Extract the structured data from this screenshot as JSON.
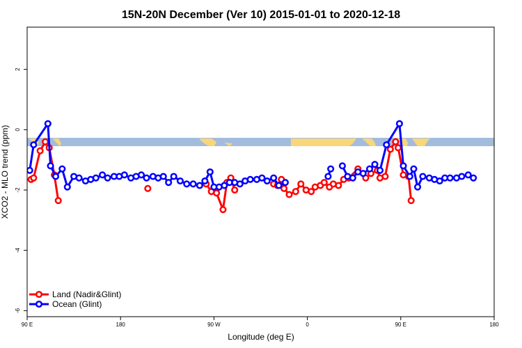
{
  "chart_data": {
    "type": "line",
    "title": "15N-20N December (Ver 10)   2015-01-01 to 2020-12-18",
    "xlabel": "Longitude (deg E)",
    "ylabel": "XCO2 - MLO trend (ppm)",
    "xlim": [
      90,
      450
    ],
    "ylim": [
      -6.2,
      3.4
    ],
    "x_ticks": [
      {
        "value": 90,
        "label": "90 E"
      },
      {
        "value": 162,
        "label": "180"
      },
      {
        "value": 234,
        "label": "90 W"
      },
      {
        "value": 306,
        "label": "0"
      },
      {
        "value": 378,
        "label": "90 E"
      },
      {
        "value": 450,
        "label": "180"
      }
    ],
    "y_ticks": [
      {
        "value": 2,
        "label": "2"
      },
      {
        "value": 0,
        "label": "0"
      },
      {
        "value": -2,
        "label": "-2"
      },
      {
        "value": -4,
        "label": "-4"
      },
      {
        "value": -6,
        "label": "-6"
      }
    ],
    "grid": false,
    "legend": "bottom-left",
    "background_band": {
      "y_range": [
        -0.78,
        -0.5
      ],
      "ocean_color": "#a3bcdd",
      "land_color": "#f9d67a"
    },
    "series": [
      {
        "name": "Land (Nadir&Glint)",
        "color": "#ff0000",
        "segments": [
          [
            [
              93,
              -1.65
            ],
            [
              95,
              -1.6
            ],
            [
              100,
              -0.7
            ],
            [
              104,
              -0.4
            ],
            [
              107,
              -0.6
            ],
            [
              111,
              -1.5
            ],
            [
              114,
              -2.35
            ]
          ],
          [
            [
              183,
              -1.95
            ]
          ],
          [
            [
              228,
              -1.8
            ],
            [
              232,
              -2.05
            ],
            [
              236,
              -2.1
            ],
            [
              241,
              -2.65
            ],
            [
              244,
              -1.75
            ],
            [
              247,
              -1.6
            ],
            [
              250,
              -2.0
            ]
          ],
          [
            [
              280,
              -1.8
            ],
            [
              283,
              -1.85
            ],
            [
              286,
              -1.65
            ],
            [
              288,
              -1.95
            ],
            [
              292,
              -2.15
            ],
            [
              297,
              -2.05
            ],
            [
              301,
              -1.8
            ],
            [
              305,
              -2.0
            ],
            [
              309,
              -2.05
            ],
            [
              312,
              -1.9
            ],
            [
              316,
              -1.85
            ],
            [
              319,
              -1.75
            ],
            [
              323,
              -1.9
            ],
            [
              326,
              -1.8
            ],
            [
              330,
              -1.85
            ],
            [
              334,
              -1.65
            ],
            [
              338,
              -1.6
            ],
            [
              345,
              -1.3
            ],
            [
              351,
              -1.6
            ],
            [
              355,
              -1.45
            ],
            [
              360,
              -1.35
            ],
            [
              362,
              -1.6
            ],
            [
              366,
              -1.55
            ],
            [
              370,
              -0.65
            ],
            [
              374,
              -0.4
            ],
            [
              376,
              -0.6
            ],
            [
              380,
              -1.5
            ],
            [
              384,
              -1.55
            ],
            [
              386,
              -2.35
            ]
          ]
        ]
      },
      {
        "name": "Ocean (Glint)",
        "color": "#0000ff",
        "segments": [
          [
            [
              92,
              -1.35
            ],
            [
              95,
              -0.5
            ],
            [
              106,
              0.2
            ],
            [
              108,
              -1.2
            ],
            [
              112,
              -1.55
            ],
            [
              117,
              -1.3
            ],
            [
              121,
              -1.9
            ],
            [
              126,
              -1.55
            ],
            [
              130,
              -1.6
            ],
            [
              135,
              -1.7
            ],
            [
              139,
              -1.65
            ],
            [
              143,
              -1.6
            ],
            [
              148,
              -1.5
            ],
            [
              152,
              -1.6
            ],
            [
              157,
              -1.55
            ],
            [
              161,
              -1.55
            ],
            [
              165,
              -1.5
            ],
            [
              170,
              -1.6
            ],
            [
              174,
              -1.55
            ],
            [
              178,
              -1.5
            ],
            [
              182,
              -1.6
            ],
            [
              187,
              -1.55
            ],
            [
              191,
              -1.6
            ],
            [
              195,
              -1.55
            ],
            [
              199,
              -1.75
            ],
            [
              203,
              -1.55
            ],
            [
              208,
              -1.7
            ],
            [
              213,
              -1.8
            ],
            [
              218,
              -1.8
            ],
            [
              223,
              -1.85
            ],
            [
              227,
              -1.7
            ],
            [
              231,
              -1.4
            ],
            [
              234,
              -1.9
            ],
            [
              238,
              -1.9
            ],
            [
              242,
              -1.85
            ],
            [
              246,
              -1.75
            ],
            [
              250,
              -1.75
            ],
            [
              254,
              -1.8
            ],
            [
              258,
              -1.7
            ],
            [
              262,
              -1.65
            ],
            [
              267,
              -1.65
            ],
            [
              271,
              -1.6
            ],
            [
              275,
              -1.7
            ],
            [
              280,
              -1.6
            ],
            [
              284,
              -1.85
            ],
            [
              289,
              -1.75
            ]
          ],
          [
            [
              322,
              -1.55
            ],
            [
              324,
              -1.3
            ]
          ],
          [
            [
              333,
              -1.2
            ],
            [
              337,
              -1.55
            ],
            [
              341,
              -1.6
            ],
            [
              345,
              -1.4
            ],
            [
              349,
              -1.45
            ],
            [
              354,
              -1.3
            ],
            [
              358,
              -1.15
            ],
            [
              362,
              -1.35
            ],
            [
              367,
              -0.5
            ],
            [
              377,
              0.2
            ],
            [
              380,
              -1.2
            ],
            [
              385,
              -1.55
            ],
            [
              388,
              -1.3
            ],
            [
              391,
              -1.9
            ],
            [
              395,
              -1.55
            ],
            [
              400,
              -1.6
            ],
            [
              404,
              -1.65
            ],
            [
              408,
              -1.7
            ],
            [
              412,
              -1.6
            ],
            [
              416,
              -1.6
            ],
            [
              421,
              -1.6
            ],
            [
              425,
              -1.55
            ],
            [
              430,
              -1.5
            ],
            [
              434,
              -1.6
            ]
          ]
        ]
      }
    ]
  }
}
